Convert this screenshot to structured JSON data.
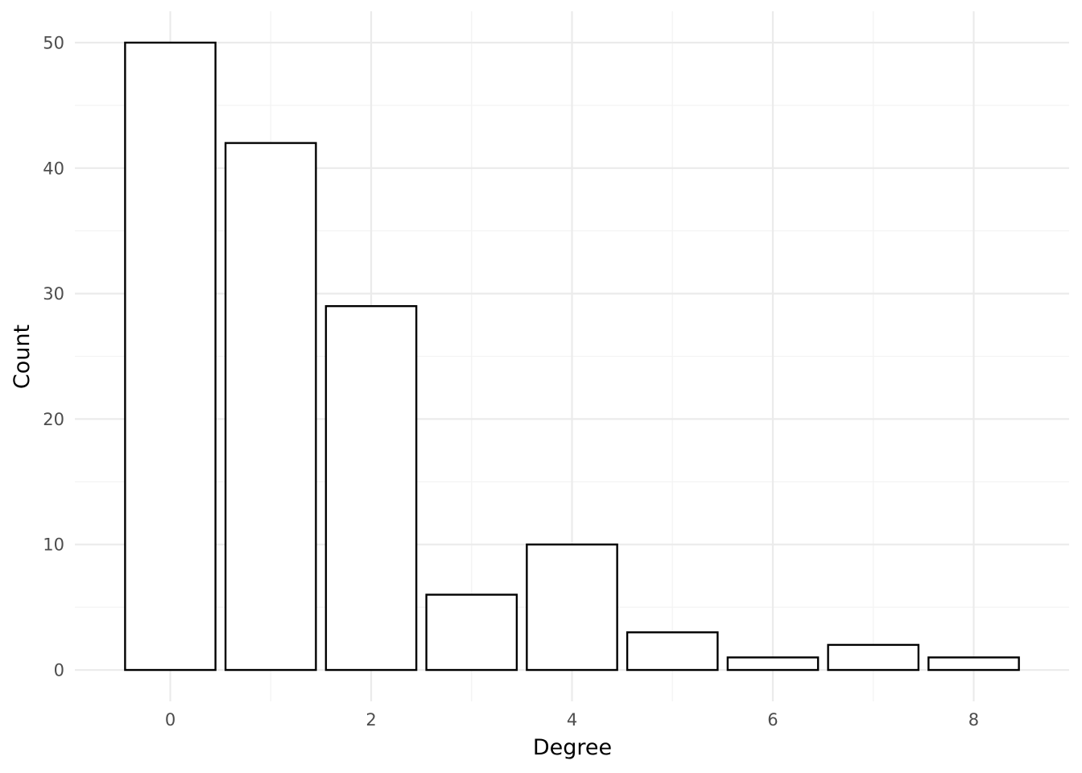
{
  "chart_data": {
    "type": "bar",
    "x": [
      0,
      1,
      2,
      3,
      4,
      5,
      6,
      7,
      8
    ],
    "values": [
      50,
      42,
      29,
      6,
      10,
      3,
      1,
      2,
      1
    ],
    "xlabel": "Degree",
    "ylabel": "Count",
    "xlim": [
      -0.95,
      8.95
    ],
    "ylim": [
      -2.5,
      52.5
    ],
    "x_ticks": [
      0,
      2,
      4,
      6,
      8
    ],
    "y_ticks": [
      0,
      10,
      20,
      30,
      40,
      50
    ],
    "x_tick_labels": [
      "0",
      "2",
      "4",
      "6",
      "8"
    ],
    "y_tick_labels": [
      "0",
      "10",
      "20",
      "30",
      "40",
      "50"
    ],
    "grid": true,
    "legend": "none",
    "colors": {
      "bar_fill": "#ffffff",
      "bar_outline": "#000000",
      "grid": "#ebebeb"
    }
  }
}
